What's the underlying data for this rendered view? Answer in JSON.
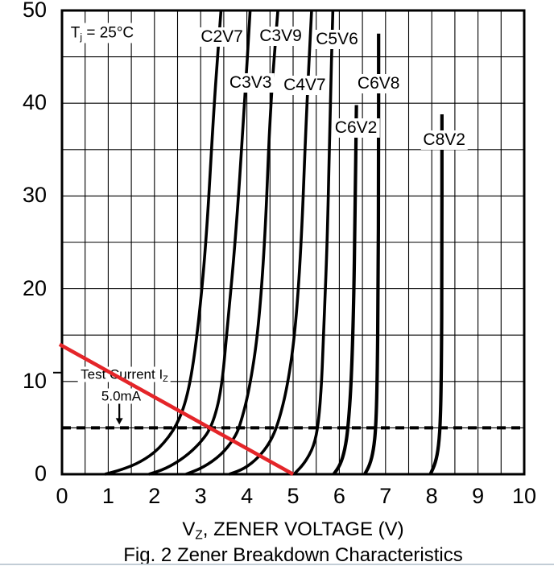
{
  "chart_data": {
    "type": "line",
    "title": "Fig. 2  Zener Breakdown Characteristics",
    "xlabel": "VZ, ZENER VOLTAGE (V)",
    "xlabel_parts": {
      "pre": "V",
      "sub": "Z",
      "post": ", ZENER VOLTAGE (V)"
    },
    "ylabel": "",
    "xlim": [
      0,
      10
    ],
    "ylim": [
      0,
      50
    ],
    "x_tick_labels": [
      "0",
      "1",
      "2",
      "3",
      "4",
      "5",
      "6",
      "7",
      "8",
      "9",
      "10"
    ],
    "x_tick_values": [
      0,
      1,
      2,
      3,
      4,
      5,
      6,
      7,
      8,
      9,
      10
    ],
    "y_tick_labels": [
      "0",
      "10",
      "20",
      "30",
      "40",
      "50"
    ],
    "y_tick_values": [
      0,
      10,
      20,
      30,
      40,
      50
    ],
    "grid": {
      "x_step": 0.5,
      "y_step": 5,
      "on": true
    },
    "condition_label": {
      "pre": "T",
      "sub": "j",
      "post": " = 25°C",
      "at": [
        0.87,
        47.6
      ]
    },
    "test_current": {
      "line_mA": 5,
      "line_style": "dashed",
      "text_line1_parts": {
        "pre": "Test Current I",
        "sub": "Z",
        "post": ""
      },
      "text_line1_at": [
        1.35,
        10.8
      ],
      "text_line2": "5.0mA",
      "text_line2_at": [
        1.28,
        8.45
      ],
      "arrow_v": 1.24,
      "arrow_i_from": 7.7,
      "arrow_i_tip": 5.35
    },
    "load_line": {
      "color": "#e42529",
      "from": [
        0,
        14
      ],
      "to": [
        5,
        0
      ]
    },
    "series": [
      {
        "name": "C2V7",
        "label_at": [
          3.46,
          47.1
        ],
        "points": [
          [
            0.93,
            0
          ],
          [
            1.3,
            0.5
          ],
          [
            1.7,
            1.3
          ],
          [
            2.1,
            2.7
          ],
          [
            2.5,
            5.3
          ],
          [
            2.75,
            9
          ],
          [
            2.94,
            15.5
          ],
          [
            3.12,
            25
          ],
          [
            3.28,
            39
          ],
          [
            3.38,
            46
          ],
          [
            3.44,
            50
          ]
        ]
      },
      {
        "name": "C3V3",
        "label_at": [
          4.08,
          42.2
        ],
        "points": [
          [
            1.88,
            0
          ],
          [
            2.25,
            0.6
          ],
          [
            2.65,
            1.8
          ],
          [
            3.0,
            3.4
          ],
          [
            3.25,
            5.2
          ],
          [
            3.45,
            9
          ],
          [
            3.57,
            15.5
          ],
          [
            3.75,
            25
          ],
          [
            3.94,
            39
          ],
          [
            4.07,
            50
          ]
        ]
      },
      {
        "name": "C3V9",
        "label_at": [
          4.73,
          47.2
        ],
        "points": [
          [
            2.68,
            0
          ],
          [
            3.05,
            0.7
          ],
          [
            3.45,
            2.1
          ],
          [
            3.72,
            3.8
          ],
          [
            3.85,
            5.2
          ],
          [
            4.05,
            9
          ],
          [
            4.25,
            15.5
          ],
          [
            4.4,
            26
          ],
          [
            4.5,
            39
          ],
          [
            4.67,
            50
          ]
        ]
      },
      {
        "name": "C4V7",
        "label_at": [
          5.25,
          41.9
        ],
        "points": [
          [
            3.62,
            0
          ],
          [
            3.95,
            0.6
          ],
          [
            4.25,
            1.8
          ],
          [
            4.5,
            3.4
          ],
          [
            4.68,
            5.5
          ],
          [
            4.88,
            9.5
          ],
          [
            5.05,
            15.5
          ],
          [
            5.18,
            25
          ],
          [
            5.28,
            38
          ],
          [
            5.4,
            50
          ]
        ]
      },
      {
        "name": "C5V6",
        "label_at": [
          5.95,
          46.9
        ],
        "points": [
          [
            5.02,
            0
          ],
          [
            5.25,
            1.2
          ],
          [
            5.45,
            3
          ],
          [
            5.55,
            5.5
          ],
          [
            5.62,
            10
          ],
          [
            5.66,
            15.5
          ],
          [
            5.74,
            25
          ],
          [
            5.8,
            39
          ],
          [
            5.86,
            50
          ]
        ]
      },
      {
        "name": "C6V2",
        "label_at": [
          6.36,
          37.3
        ],
        "points": [
          [
            5.88,
            0
          ],
          [
            6.02,
            1
          ],
          [
            6.12,
            2.6
          ],
          [
            6.19,
            5
          ],
          [
            6.26,
            10
          ],
          [
            6.31,
            18
          ],
          [
            6.34,
            28
          ],
          [
            6.37,
            39.8
          ]
        ]
      },
      {
        "name": "C6V8",
        "label_at": [
          6.85,
          42.1
        ],
        "points": [
          [
            6.55,
            0
          ],
          [
            6.66,
            1
          ],
          [
            6.74,
            2.6
          ],
          [
            6.79,
            5
          ],
          [
            6.82,
            10
          ],
          [
            6.84,
            20
          ],
          [
            6.85,
            33
          ],
          [
            6.85,
            47.5
          ]
        ]
      },
      {
        "name": "C8V2",
        "label_at": [
          8.27,
          36.0
        ],
        "points": [
          [
            7.97,
            0
          ],
          [
            8.08,
            1.2
          ],
          [
            8.15,
            3
          ],
          [
            8.19,
            6
          ],
          [
            8.21,
            12
          ],
          [
            8.22,
            22
          ],
          [
            8.22,
            38.8
          ]
        ]
      }
    ],
    "line_color": "#000000",
    "grid_color": "#000000",
    "legend": "none"
  }
}
